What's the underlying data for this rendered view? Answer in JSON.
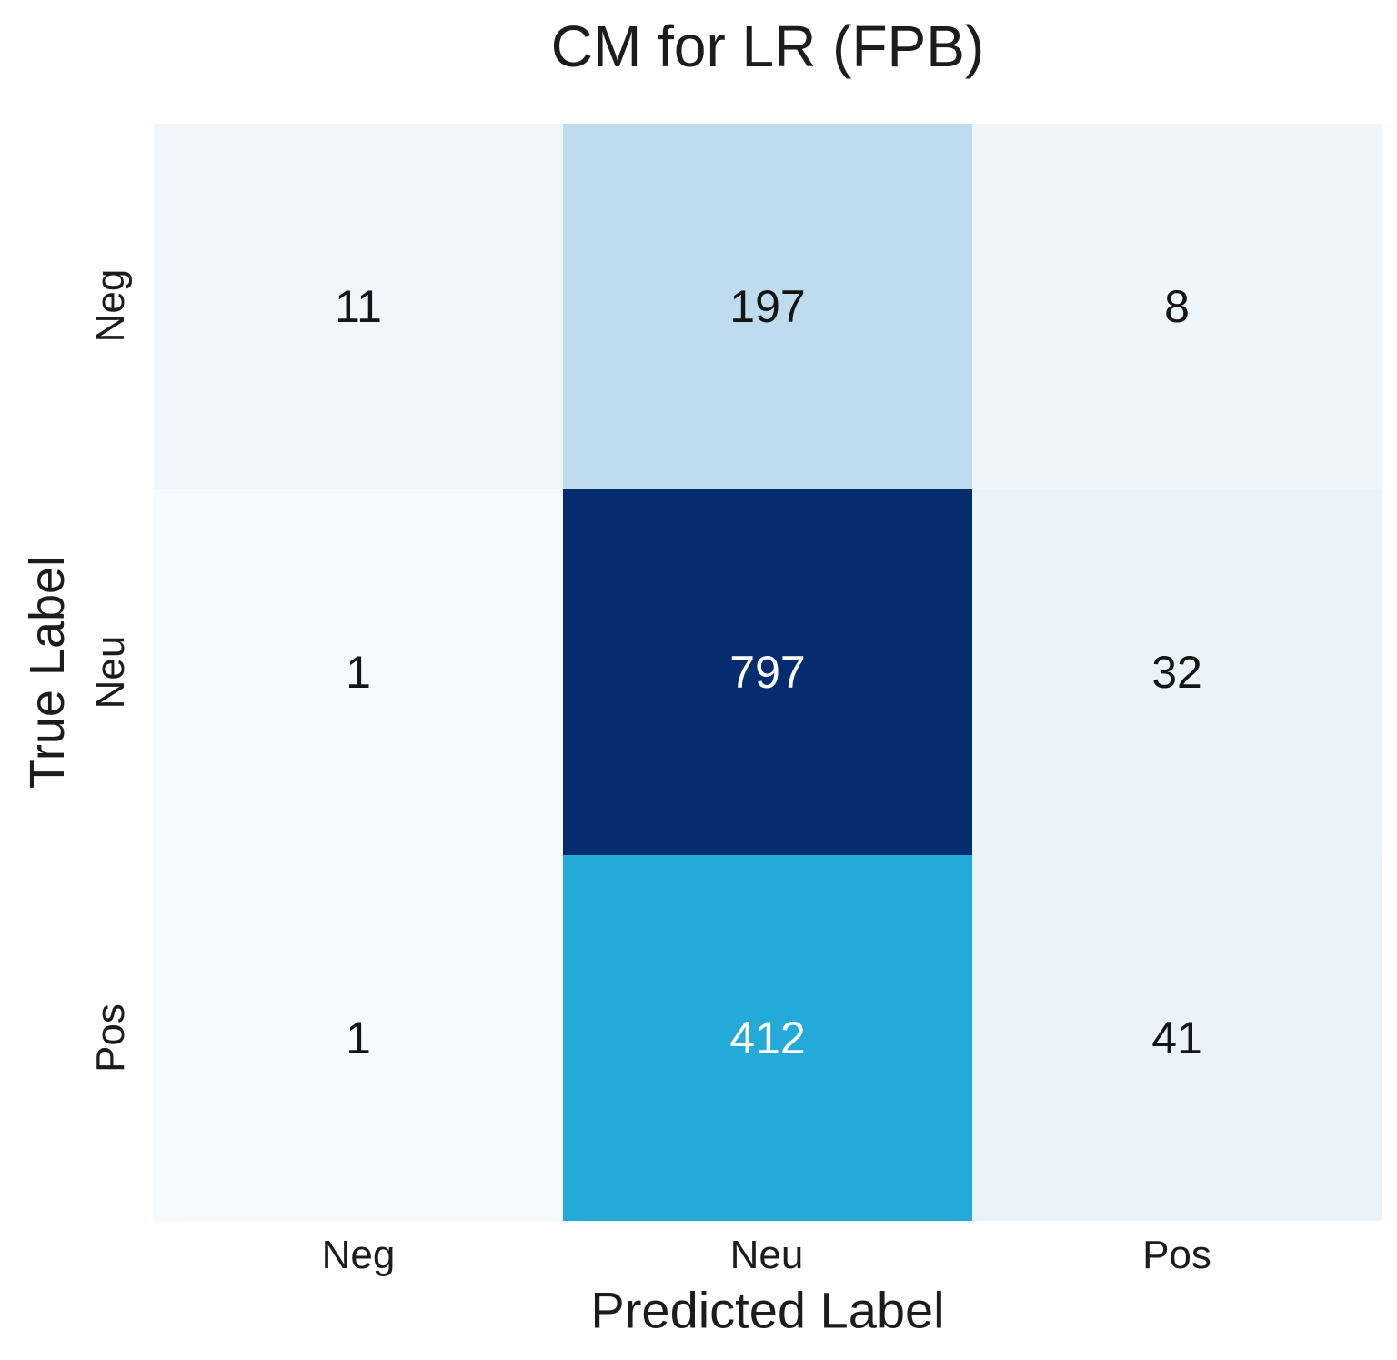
{
  "chart_data": {
    "type": "heatmap",
    "title": "CM for LR (FPB)",
    "xlabel": "Predicted Label",
    "ylabel": "True Label",
    "x_tick_labels": [
      "Neg",
      "Neu",
      "Pos"
    ],
    "y_tick_labels": [
      "Neg",
      "Neu",
      "Pos"
    ],
    "matrix_rows": [
      "Neg",
      "Neu",
      "Pos"
    ],
    "matrix_cols": [
      "Neg",
      "Neu",
      "Pos"
    ],
    "matrix": [
      [
        11,
        197,
        8
      ],
      [
        1,
        797,
        32
      ],
      [
        1,
        412,
        41
      ]
    ],
    "value_range": [
      1,
      797
    ],
    "colormap": "blues-like",
    "legend": "none",
    "background_color": "#ffffff",
    "cells": [
      {
        "row": "Neg",
        "col": "Neg",
        "value": "11",
        "bg": "#f0f6fb",
        "fg": "#151515"
      },
      {
        "row": "Neg",
        "col": "Neu",
        "value": "197",
        "bg": "#bfdcee",
        "fg": "#151515"
      },
      {
        "row": "Neg",
        "col": "Pos",
        "value": "8",
        "bg": "#eef5fb",
        "fg": "#151515"
      },
      {
        "row": "Neu",
        "col": "Neg",
        "value": "1",
        "bg": "#f6fafe",
        "fg": "#151515"
      },
      {
        "row": "Neu",
        "col": "Neu",
        "value": "797",
        "bg": "#052c6e",
        "fg": "#ffffff"
      },
      {
        "row": "Neu",
        "col": "Pos",
        "value": "32",
        "bg": "#ebf3fa",
        "fg": "#151515"
      },
      {
        "row": "Pos",
        "col": "Neg",
        "value": "1",
        "bg": "#f6fafe",
        "fg": "#151515"
      },
      {
        "row": "Pos",
        "col": "Neu",
        "value": "412",
        "bg": "#24aad8",
        "fg": "#ffffff"
      },
      {
        "row": "Pos",
        "col": "Pos",
        "value": "41",
        "bg": "#e9f1f9",
        "fg": "#151515"
      }
    ]
  }
}
